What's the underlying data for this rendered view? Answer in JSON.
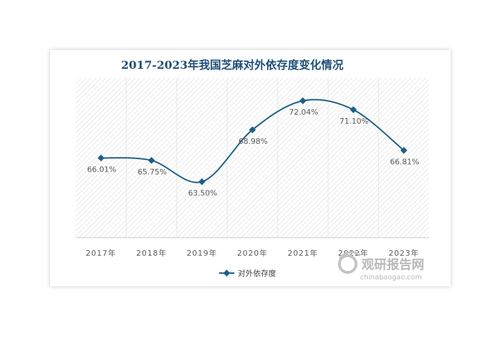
{
  "chart_data": {
    "type": "line",
    "title": "2017-2023年我国芝麻对外依存度变化情况",
    "categories": [
      "2017年",
      "2018年",
      "2019年",
      "2020年",
      "2021年",
      "2022年",
      "2023年"
    ],
    "series": [
      {
        "name": "对外依存度",
        "values": [
          66.01,
          65.75,
          63.5,
          68.98,
          72.04,
          71.1,
          66.81
        ],
        "labels": [
          "66.01%",
          "65.75%",
          "63.50%",
          "68.98%",
          "72.04%",
          "71.10%",
          "66.81%"
        ],
        "color": "#1f5f86"
      }
    ],
    "smooth": true,
    "legend": "bottom",
    "grid": false
  },
  "watermark": {
    "cn": "观研报告网",
    "en": "chinabaogao.com"
  },
  "colors": {
    "line": "#1f5f86",
    "title": "#1f4e79"
  }
}
